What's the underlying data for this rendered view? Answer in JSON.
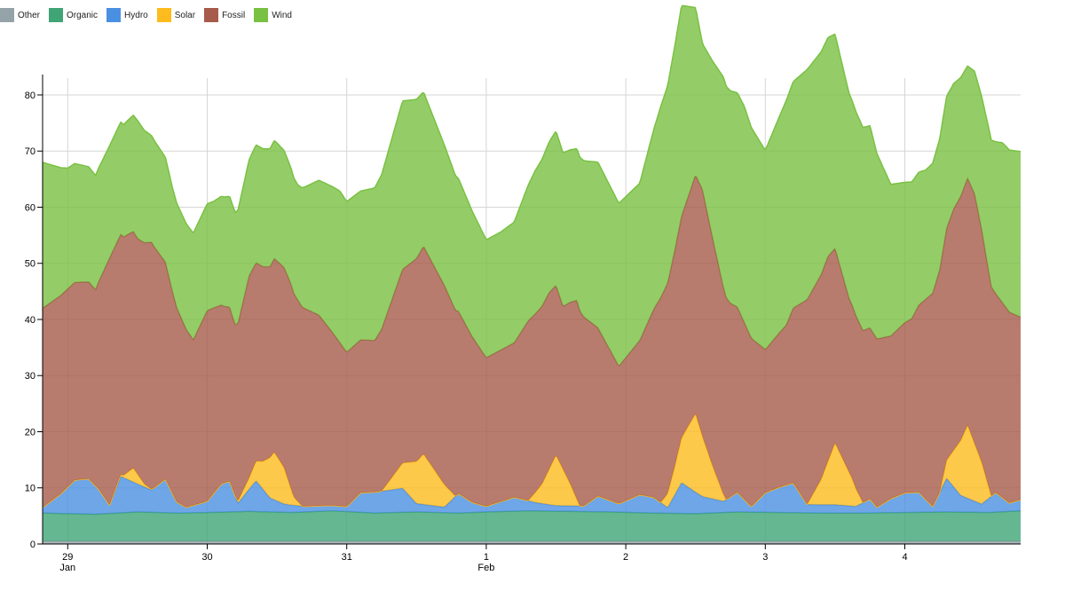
{
  "legend": {
    "items": [
      {
        "key": "other",
        "label": "Other",
        "color": "#94a3a8"
      },
      {
        "key": "organic",
        "label": "Organic",
        "color": "#3fa577"
      },
      {
        "key": "hydro",
        "label": "Hydro",
        "color": "#4a90e2"
      },
      {
        "key": "solar",
        "label": "Solar",
        "color": "#fdbb1e"
      },
      {
        "key": "fossil",
        "label": "Fossil",
        "color": "#a65b4b"
      },
      {
        "key": "wind",
        "label": "Wind",
        "color": "#79c142"
      }
    ]
  },
  "chart_data": {
    "type": "area",
    "stacked": true,
    "grid": true,
    "legend_placement": "top-left",
    "ylim": [
      0,
      83
    ],
    "yticks": [
      0,
      10,
      20,
      30,
      40,
      50,
      60,
      70,
      80
    ],
    "x_ticks": [
      {
        "label": "29",
        "sublabel": "Jan",
        "day": 29
      },
      {
        "label": "30",
        "sublabel": "",
        "day": 30
      },
      {
        "label": "31",
        "sublabel": "",
        "day": 31
      },
      {
        "label": "1",
        "sublabel": "Feb",
        "day": 32
      },
      {
        "label": "2",
        "sublabel": "",
        "day": 33
      },
      {
        "label": "3",
        "sublabel": "",
        "day": 34
      },
      {
        "label": "4",
        "sublabel": "",
        "day": 35
      }
    ],
    "x_range_days": [
      28.82,
      35.83
    ],
    "series": [
      {
        "name": "Other",
        "color": "#94a3a8",
        "points": [
          [
            28.82,
            0.5
          ],
          [
            35.83,
            0.5
          ]
        ]
      },
      {
        "name": "Organic",
        "color": "#3fa577",
        "points": [
          [
            28.82,
            5.0
          ],
          [
            29.2,
            4.8
          ],
          [
            29.5,
            5.2
          ],
          [
            29.8,
            5.0
          ],
          [
            30.0,
            5.1
          ],
          [
            30.3,
            5.3
          ],
          [
            30.6,
            5.1
          ],
          [
            30.9,
            5.4
          ],
          [
            31.2,
            5.0
          ],
          [
            31.5,
            5.2
          ],
          [
            31.8,
            5.0
          ],
          [
            32.0,
            5.2
          ],
          [
            32.3,
            5.4
          ],
          [
            32.6,
            5.3
          ],
          [
            32.9,
            5.2
          ],
          [
            33.2,
            5.0
          ],
          [
            33.5,
            4.9
          ],
          [
            33.8,
            5.2
          ],
          [
            34.1,
            5.1
          ],
          [
            34.4,
            5.0
          ],
          [
            34.7,
            5.0
          ],
          [
            35.0,
            5.1
          ],
          [
            35.3,
            5.2
          ],
          [
            35.6,
            5.1
          ],
          [
            35.83,
            5.4
          ]
        ]
      },
      {
        "name": "Hydro",
        "color": "#4a90e2",
        "points": [
          [
            28.82,
            1.0
          ],
          [
            28.95,
            3.5
          ],
          [
            29.05,
            6.0
          ],
          [
            29.15,
            6.3
          ],
          [
            29.22,
            4.5
          ],
          [
            29.3,
            1.5
          ],
          [
            29.38,
            6.5
          ],
          [
            29.5,
            5.0
          ],
          [
            29.6,
            4.0
          ],
          [
            29.7,
            6.0
          ],
          [
            29.78,
            2.0
          ],
          [
            29.85,
            1.0
          ],
          [
            30.0,
            2.0
          ],
          [
            30.1,
            5.0
          ],
          [
            30.16,
            5.5
          ],
          [
            30.22,
            1.5
          ],
          [
            30.35,
            5.5
          ],
          [
            30.45,
            2.5
          ],
          [
            30.55,
            1.5
          ],
          [
            30.7,
            1.0
          ],
          [
            30.85,
            1.0
          ],
          [
            31.0,
            0.9
          ],
          [
            31.1,
            3.5
          ],
          [
            31.3,
            4.0
          ],
          [
            31.4,
            4.3
          ],
          [
            31.5,
            1.5
          ],
          [
            31.7,
            1.0
          ],
          [
            31.8,
            3.5
          ],
          [
            31.9,
            1.8
          ],
          [
            32.0,
            1.0
          ],
          [
            32.2,
            2.5
          ],
          [
            32.35,
            1.5
          ],
          [
            32.5,
            1.0
          ],
          [
            32.7,
            1.0
          ],
          [
            32.8,
            2.8
          ],
          [
            32.95,
            1.5
          ],
          [
            33.1,
            3.2
          ],
          [
            33.2,
            2.8
          ],
          [
            33.3,
            1.0
          ],
          [
            33.4,
            5.5
          ],
          [
            33.55,
            3.0
          ],
          [
            33.7,
            2.0
          ],
          [
            33.8,
            3.5
          ],
          [
            33.9,
            1.0
          ],
          [
            34.0,
            3.5
          ],
          [
            34.1,
            4.5
          ],
          [
            34.2,
            5.3
          ],
          [
            34.3,
            1.5
          ],
          [
            34.5,
            1.5
          ],
          [
            34.65,
            1.2
          ],
          [
            34.75,
            2.5
          ],
          [
            34.8,
            1.0
          ],
          [
            34.9,
            2.5
          ],
          [
            35.0,
            3.5
          ],
          [
            35.1,
            3.6
          ],
          [
            35.2,
            1.0
          ],
          [
            35.3,
            6.0
          ],
          [
            35.4,
            3.0
          ],
          [
            35.55,
            1.5
          ],
          [
            35.65,
            3.5
          ],
          [
            35.75,
            1.5
          ],
          [
            35.83,
            2.0
          ]
        ]
      },
      {
        "name": "Solar",
        "color": "#fdbb1e",
        "points": [
          [
            28.82,
            0
          ],
          [
            29.3,
            0
          ],
          [
            29.4,
            0.4
          ],
          [
            29.47,
            2.5
          ],
          [
            29.55,
            0.5
          ],
          [
            29.62,
            0
          ],
          [
            30.2,
            0
          ],
          [
            30.3,
            2.0
          ],
          [
            30.4,
            5.0
          ],
          [
            30.48,
            8.5
          ],
          [
            30.55,
            6.5
          ],
          [
            30.62,
            1.5
          ],
          [
            30.68,
            0
          ],
          [
            31.25,
            0
          ],
          [
            31.4,
            4.5
          ],
          [
            31.55,
            9.0
          ],
          [
            31.7,
            4.0
          ],
          [
            31.78,
            0
          ],
          [
            32.3,
            0
          ],
          [
            32.4,
            3.5
          ],
          [
            32.5,
            9.0
          ],
          [
            32.6,
            4.0
          ],
          [
            32.67,
            0
          ],
          [
            33.25,
            0
          ],
          [
            33.35,
            5.0
          ],
          [
            33.5,
            14.0
          ],
          [
            33.62,
            6.0
          ],
          [
            33.72,
            0
          ],
          [
            34.3,
            0
          ],
          [
            34.4,
            4.5
          ],
          [
            34.5,
            11.0
          ],
          [
            34.62,
            5.0
          ],
          [
            34.7,
            0
          ],
          [
            35.25,
            0
          ],
          [
            35.35,
            6.5
          ],
          [
            35.45,
            13.0
          ],
          [
            35.55,
            7.5
          ],
          [
            35.62,
            0
          ],
          [
            35.83,
            0
          ]
        ]
      },
      {
        "name": "Fossil",
        "color": "#a65b4b",
        "points": [
          [
            28.82,
            35.5
          ],
          [
            29.0,
            35.3
          ],
          [
            29.2,
            35.0
          ],
          [
            29.3,
            44.0
          ],
          [
            29.4,
            42.5
          ],
          [
            29.5,
            42.0
          ],
          [
            29.6,
            44.0
          ],
          [
            29.75,
            36.0
          ],
          [
            29.9,
            29.5
          ],
          [
            30.0,
            34.0
          ],
          [
            30.12,
            31.5
          ],
          [
            30.2,
            30.5
          ],
          [
            30.3,
            36.0
          ],
          [
            30.45,
            34.0
          ],
          [
            30.6,
            36.5
          ],
          [
            30.8,
            34.0
          ],
          [
            31.0,
            27.5
          ],
          [
            31.2,
            27.0
          ],
          [
            31.4,
            34.5
          ],
          [
            31.55,
            37.0
          ],
          [
            31.7,
            35.5
          ],
          [
            31.85,
            31.0
          ],
          [
            32.0,
            26.5
          ],
          [
            32.2,
            27.5
          ],
          [
            32.3,
            32.0
          ],
          [
            32.45,
            31.5
          ],
          [
            32.55,
            29.0
          ],
          [
            32.65,
            35.5
          ],
          [
            32.8,
            30.0
          ],
          [
            32.95,
            24.5
          ],
          [
            33.1,
            27.5
          ],
          [
            33.25,
            36.5
          ],
          [
            33.4,
            39.5
          ],
          [
            33.55,
            44.0
          ],
          [
            33.75,
            34.5
          ],
          [
            33.9,
            30.0
          ],
          [
            34.0,
            25.5
          ],
          [
            34.15,
            28.5
          ],
          [
            34.3,
            36.5
          ],
          [
            34.45,
            36.5
          ],
          [
            34.6,
            31.0
          ],
          [
            34.75,
            30.5
          ],
          [
            34.9,
            29.0
          ],
          [
            35.05,
            31.0
          ],
          [
            35.2,
            38.0
          ],
          [
            35.35,
            43.0
          ],
          [
            35.5,
            44.5
          ],
          [
            35.65,
            35.5
          ],
          [
            35.75,
            34.0
          ],
          [
            35.83,
            32.5
          ]
        ]
      },
      {
        "name": "Wind",
        "color": "#79c142",
        "points": [
          [
            28.82,
            26.0
          ],
          [
            29.0,
            21.5
          ],
          [
            29.15,
            20.5
          ],
          [
            29.3,
            20.0
          ],
          [
            29.4,
            20.0
          ],
          [
            29.5,
            21.0
          ],
          [
            29.6,
            19.0
          ],
          [
            29.75,
            18.5
          ],
          [
            29.9,
            19.0
          ],
          [
            30.05,
            19.0
          ],
          [
            30.2,
            20.0
          ],
          [
            30.35,
            21.0
          ],
          [
            30.5,
            21.0
          ],
          [
            30.65,
            20.5
          ],
          [
            30.8,
            24.0
          ],
          [
            30.95,
            27.0
          ],
          [
            31.1,
            26.5
          ],
          [
            31.25,
            27.5
          ],
          [
            31.4,
            30.0
          ],
          [
            31.55,
            27.5
          ],
          [
            31.7,
            25.0
          ],
          [
            31.85,
            23.0
          ],
          [
            32.0,
            21.0
          ],
          [
            32.1,
            21.0
          ],
          [
            32.2,
            21.5
          ],
          [
            32.35,
            25.5
          ],
          [
            32.5,
            27.5
          ],
          [
            32.65,
            27.0
          ],
          [
            32.8,
            29.5
          ],
          [
            32.95,
            29.0
          ],
          [
            33.1,
            28.0
          ],
          [
            33.25,
            34.0
          ],
          [
            33.4,
            37.5
          ],
          [
            33.55,
            26.0
          ],
          [
            33.7,
            37.5
          ],
          [
            33.85,
            38.5
          ],
          [
            34.0,
            35.5
          ],
          [
            34.15,
            40.0
          ],
          [
            34.3,
            41.0
          ],
          [
            34.45,
            39.0
          ],
          [
            34.6,
            36.5
          ],
          [
            34.75,
            36.0
          ],
          [
            34.9,
            27.0
          ],
          [
            35.0,
            25.0
          ],
          [
            35.15,
            23.0
          ],
          [
            35.3,
            23.5
          ],
          [
            35.45,
            20.0
          ],
          [
            35.6,
            25.5
          ],
          [
            35.7,
            28.5
          ],
          [
            35.83,
            29.5
          ]
        ]
      }
    ]
  }
}
